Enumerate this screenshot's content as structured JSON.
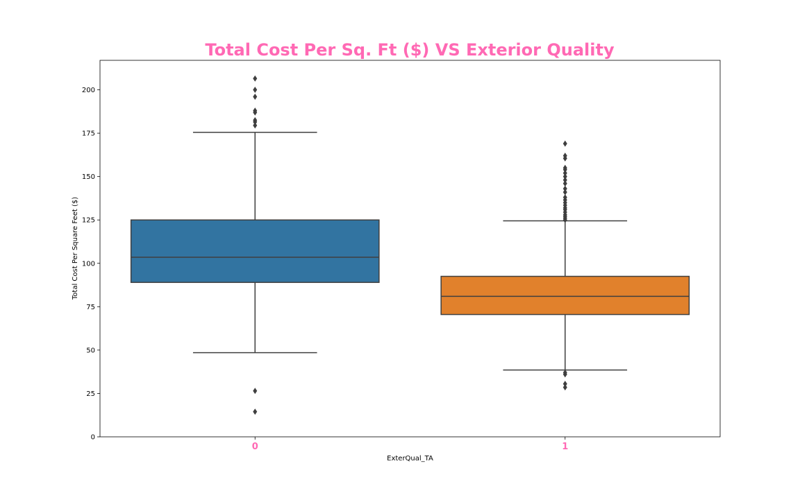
{
  "colors": {
    "title": "#ff69b4",
    "xtick": "#ff69b4",
    "edge": "#3f3f3f",
    "series": [
      "#3274a1",
      "#e1812c"
    ]
  },
  "chart_data": {
    "type": "box",
    "title": "Total Cost Per Sq. Ft ($) VS Exterior Quality",
    "xlabel": "ExterQual_TA",
    "ylabel": "Total Cost Per Square Feet ($)",
    "categories": [
      "0",
      "1"
    ],
    "ylim": [
      0,
      217
    ],
    "yticks": [
      0,
      25,
      50,
      75,
      100,
      125,
      150,
      175,
      200
    ],
    "grid": false,
    "legend": "none",
    "boxes": [
      {
        "category": "0",
        "whisker_low": 48.5,
        "q1": 89,
        "median": 103.5,
        "q3": 125,
        "whisker_high": 175.5,
        "outliers": [
          14.5,
          26.5,
          179.5,
          181.5,
          182.5,
          187,
          188,
          196,
          200,
          206.5
        ]
      },
      {
        "category": "1",
        "whisker_low": 38.5,
        "q1": 70.5,
        "median": 81,
        "q3": 92.5,
        "whisker_high": 124.5,
        "outliers": [
          28.5,
          30.5,
          36,
          37,
          125,
          126,
          127,
          128,
          129.5,
          131,
          132,
          133.5,
          135,
          136.5,
          138,
          141,
          143,
          146,
          148,
          150,
          152,
          154,
          155,
          160.5,
          162,
          169
        ]
      }
    ]
  }
}
